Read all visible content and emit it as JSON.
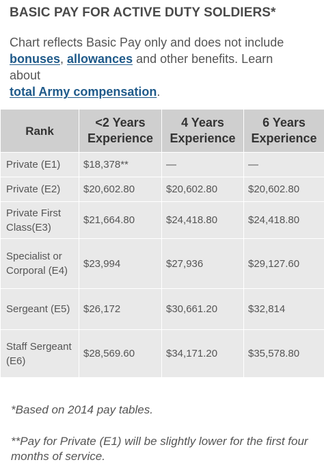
{
  "title": "BASIC PAY FOR ACTIVE DUTY SOLDIERS*",
  "intro": {
    "text_before": "Chart reflects Basic Pay only and does not include",
    "link_bonuses": "bonuses",
    "comma": ", ",
    "link_allowances": "allowances",
    "text_after": " and other benefits. Learn",
    "text_about": "about",
    "link_total": "total Army compensation",
    "period": "."
  },
  "table": {
    "headers": [
      "Rank",
      "<2 Years Experience",
      "4 Years Experience",
      "6 Years Experience"
    ],
    "rows": [
      {
        "rank": "Private (E1)",
        "y2": "$18,378**",
        "y4": "—",
        "y6": "—"
      },
      {
        "rank": "Private (E2)",
        "y2": "$20,602.80",
        "y4": "$20,602.80",
        "y6": "$20,602.80"
      },
      {
        "rank": "Private First Class(E3)",
        "y2": "$21,664.80",
        "y4": "$24,418.80",
        "y6": "$24,418.80"
      },
      {
        "rank": "Specialist or Corporal (E4)",
        "y2": "$23,994",
        "y4": "$27,936",
        "y6": "$29,127.60"
      },
      {
        "rank": "Sergeant (E5)",
        "y2": "$26,172",
        "y4": "$30,661.20",
        "y6": "$32,814"
      },
      {
        "rank": "Staff Sergeant (E6)",
        "y2": "$28,569.60",
        "y4": "$34,171.20",
        "y6": "$35,578.80"
      }
    ]
  },
  "footnotes": {
    "note1": "*Based on 2014 pay tables.",
    "note2": "**Pay for Private (E1) will be slightly lower for the first four months of service."
  },
  "colors": {
    "header_bg": "#cfcfcf",
    "cell_bg": "#e9e9e9",
    "link": "#1f5a8a",
    "text": "#555555"
  }
}
